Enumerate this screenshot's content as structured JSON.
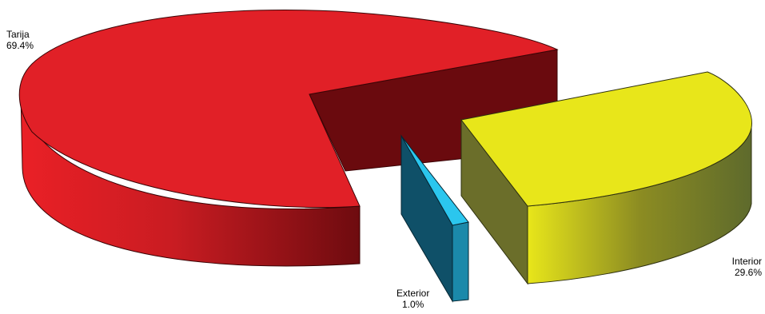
{
  "chart_data": {
    "type": "pie",
    "style": "3d-exploded",
    "title": "",
    "slices": [
      {
        "name": "Tarija",
        "label": "Tarija",
        "percent_label": "69.4%",
        "value": 69.4,
        "color": "#e31e24",
        "side_color": "#7a0c10"
      },
      {
        "name": "Exterior",
        "label": "Exterior",
        "percent_label": "1.0%",
        "value": 1.0,
        "color": "#29c3ec",
        "side_color": "#0f4f66"
      },
      {
        "name": "Interior",
        "label": "Interior",
        "percent_label": "29.6%",
        "value": 29.6,
        "color": "#e8e61a",
        "side_color": "#5f6a2a"
      }
    ]
  }
}
